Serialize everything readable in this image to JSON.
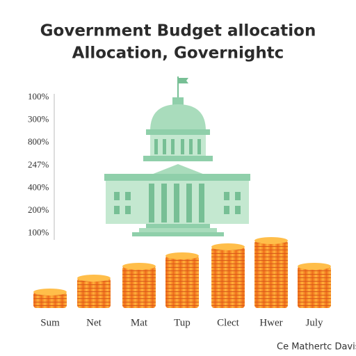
{
  "header": {
    "title_lines": [
      "Government Budget allocation",
      "Allocation, Governightc"
    ]
  },
  "axis_labels": [
    "100%",
    "300%",
    "800%",
    "247%",
    "400%",
    "200%",
    "100%"
  ],
  "categories": [
    "Sum",
    "Net",
    "Mat",
    "Tup",
    "Clect",
    "Hwer",
    "July"
  ],
  "credit": "Ce Mathertc Davis"
}
